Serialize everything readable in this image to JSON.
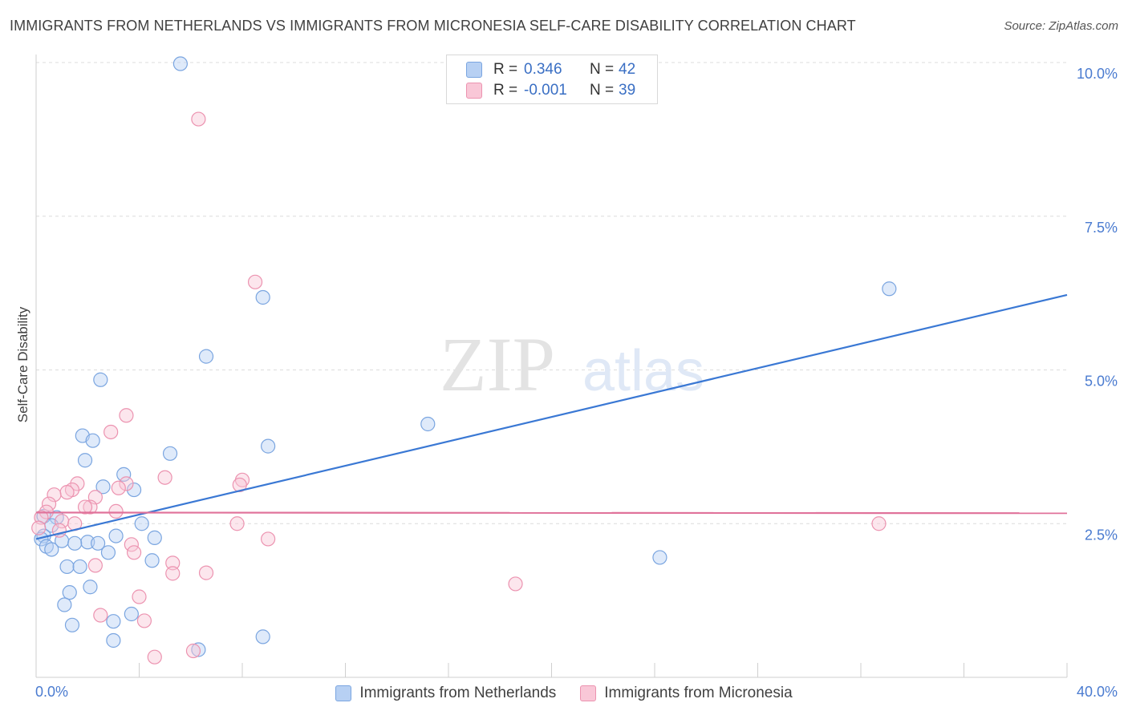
{
  "title": "IMMIGRANTS FROM NETHERLANDS VS IMMIGRANTS FROM MICRONESIA SELF-CARE DISABILITY CORRELATION CHART",
  "source": "Source: ZipAtlas.com",
  "watermark": {
    "zip": "ZIP",
    "atlas": "atlas"
  },
  "stats": [
    {
      "r_label": "R =",
      "r_value": "0.346",
      "n_label": "N =",
      "n_value": "42",
      "color": "#b7d0f3",
      "border": "#7aa5e0"
    },
    {
      "r_label": "R =",
      "r_value": "-0.001",
      "n_label": "N =",
      "n_value": "39",
      "color": "#f9c7d7",
      "border": "#ec93b0"
    }
  ],
  "chart_data": {
    "type": "scatter",
    "title": "IMMIGRANTS FROM NETHERLANDS VS IMMIGRANTS FROM MICRONESIA SELF-CARE DISABILITY CORRELATION CHART",
    "xlabel": "",
    "ylabel": "Self-Care Disability",
    "xlim": [
      0,
      40
    ],
    "ylim": [
      0,
      10
    ],
    "x_tick_labels": [
      "0.0%",
      "40.0%"
    ],
    "y_ticks": [
      2.5,
      5.0,
      7.5,
      10.0
    ],
    "y_tick_labels": [
      "2.5%",
      "5.0%",
      "7.5%",
      "10.0%"
    ],
    "grid": true,
    "legend_position": "bottom",
    "series": [
      {
        "name": "Immigrants from Netherlands",
        "color": "#7aa5e0",
        "fill": "rgba(183,208,243,0.45)",
        "trend_color": "#3a78d4",
        "trend": [
          [
            0,
            2.25
          ],
          [
            40,
            6.22
          ]
        ],
        "points": [
          [
            5.6,
            9.98
          ],
          [
            8.8,
            6.18
          ],
          [
            33.1,
            6.32
          ],
          [
            6.6,
            5.22
          ],
          [
            2.5,
            4.84
          ],
          [
            15.2,
            4.12
          ],
          [
            1.8,
            3.93
          ],
          [
            2.2,
            3.85
          ],
          [
            9.0,
            3.76
          ],
          [
            5.2,
            3.64
          ],
          [
            1.9,
            3.53
          ],
          [
            3.4,
            3.3
          ],
          [
            2.6,
            3.1
          ],
          [
            3.8,
            3.05
          ],
          [
            0.3,
            2.62
          ],
          [
            0.8,
            2.6
          ],
          [
            0.6,
            2.47
          ],
          [
            4.1,
            2.5
          ],
          [
            0.3,
            2.3
          ],
          [
            3.1,
            2.3
          ],
          [
            4.6,
            2.27
          ],
          [
            0.2,
            2.25
          ],
          [
            1.0,
            2.22
          ],
          [
            2.0,
            2.2
          ],
          [
            1.5,
            2.18
          ],
          [
            2.4,
            2.18
          ],
          [
            0.4,
            2.13
          ],
          [
            0.6,
            2.08
          ],
          [
            2.8,
            2.03
          ],
          [
            4.5,
            1.9
          ],
          [
            1.2,
            1.8
          ],
          [
            1.7,
            1.8
          ],
          [
            24.2,
            1.95
          ],
          [
            2.1,
            1.47
          ],
          [
            1.3,
            1.38
          ],
          [
            1.1,
            1.18
          ],
          [
            3.7,
            1.03
          ],
          [
            3.0,
            0.91
          ],
          [
            1.4,
            0.85
          ],
          [
            8.8,
            0.66
          ],
          [
            3.0,
            0.6
          ],
          [
            6.3,
            0.45
          ]
        ]
      },
      {
        "name": "Immigrants from Micronesia",
        "color": "#ec93b0",
        "fill": "rgba(249,199,215,0.45)",
        "trend_color": "#e0729a",
        "trend": [
          [
            0,
            2.68
          ],
          [
            40,
            2.67
          ]
        ],
        "points": [
          [
            6.3,
            9.08
          ],
          [
            8.5,
            6.43
          ],
          [
            3.5,
            4.26
          ],
          [
            2.9,
            3.99
          ],
          [
            5.0,
            3.25
          ],
          [
            8.0,
            3.21
          ],
          [
            7.9,
            3.13
          ],
          [
            1.6,
            3.15
          ],
          [
            3.5,
            3.15
          ],
          [
            3.2,
            3.08
          ],
          [
            1.4,
            3.05
          ],
          [
            1.2,
            3.01
          ],
          [
            0.7,
            2.97
          ],
          [
            2.3,
            2.93
          ],
          [
            0.5,
            2.82
          ],
          [
            2.1,
            2.77
          ],
          [
            1.9,
            2.77
          ],
          [
            3.1,
            2.7
          ],
          [
            0.4,
            2.69
          ],
          [
            0.2,
            2.6
          ],
          [
            1.0,
            2.54
          ],
          [
            1.5,
            2.5
          ],
          [
            7.8,
            2.5
          ],
          [
            32.7,
            2.5
          ],
          [
            0.1,
            2.43
          ],
          [
            0.9,
            2.39
          ],
          [
            9.0,
            2.25
          ],
          [
            3.7,
            2.16
          ],
          [
            3.8,
            2.03
          ],
          [
            5.3,
            1.86
          ],
          [
            2.3,
            1.82
          ],
          [
            5.3,
            1.69
          ],
          [
            6.6,
            1.7
          ],
          [
            18.6,
            1.52
          ],
          [
            4.0,
            1.31
          ],
          [
            2.5,
            1.01
          ],
          [
            4.2,
            0.92
          ],
          [
            4.6,
            0.33
          ],
          [
            6.1,
            0.43
          ]
        ]
      }
    ]
  }
}
